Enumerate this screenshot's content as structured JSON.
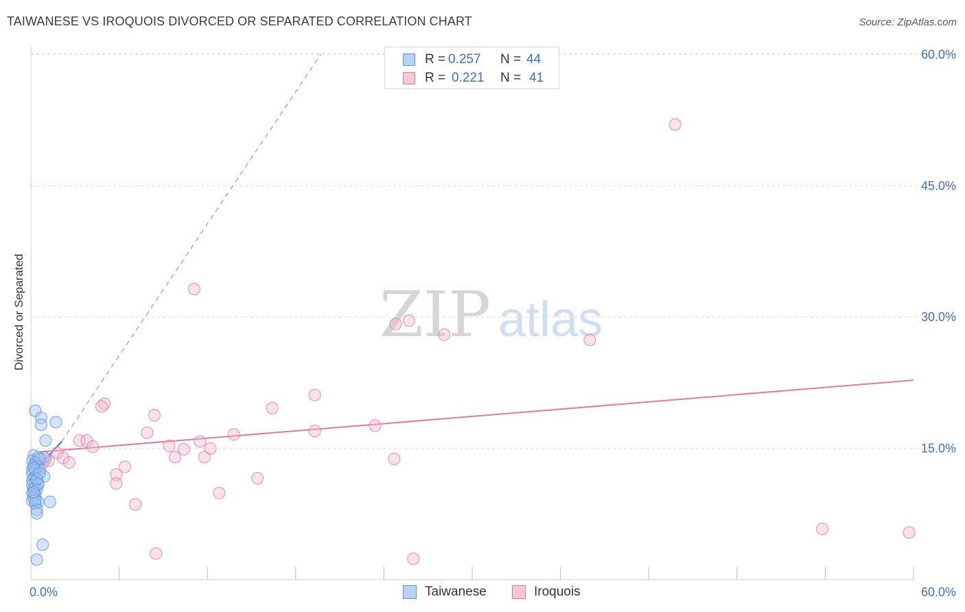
{
  "header": {
    "title": "TAIWANESE VS IROQUOIS DIVORCED OR SEPARATED CORRELATION CHART",
    "source": "Source: ZipAtlas.com"
  },
  "watermark": {
    "zip": "ZIP",
    "atlas": "atlas"
  },
  "legend": {
    "r_label": "R =",
    "n_label": "N =",
    "items": [
      {
        "name": "Taiwanese",
        "r": "0.257",
        "n": "44",
        "color": "#5b8fd8",
        "fill": "#b8d2f5"
      },
      {
        "name": "Iroquois",
        "r": "0.221",
        "n": "41",
        "color": "#e8779b",
        "fill": "#f9c6d6"
      }
    ]
  },
  "chart_data": {
    "type": "scatter",
    "title": "TAIWANESE VS IROQUOIS DIVORCED OR SEPARATED CORRELATION CHART",
    "xlabel": "",
    "ylabel": "Divorced or Separated",
    "xlim": [
      0,
      60
    ],
    "ylim": [
      0,
      62
    ],
    "x_tick_labels": [
      "0.0%",
      "60.0%"
    ],
    "y_ticks": [
      15,
      30,
      45,
      60
    ],
    "y_tick_labels": [
      "15.0%",
      "30.0%",
      "45.0%",
      "60.0%"
    ],
    "grid": true,
    "series": [
      {
        "name": "Taiwanese",
        "color": "#5b8fd8",
        "points": [
          [
            0.3,
            19.3
          ],
          [
            0.7,
            18.5
          ],
          [
            1.7,
            18.0
          ],
          [
            0.7,
            17.7
          ],
          [
            1.0,
            15.9
          ],
          [
            0.2,
            14.2
          ],
          [
            0.5,
            14.0
          ],
          [
            0.9,
            14.0
          ],
          [
            0.1,
            13.6
          ],
          [
            0.3,
            13.4
          ],
          [
            0.2,
            13.1
          ],
          [
            0.4,
            12.9
          ],
          [
            0.1,
            12.6
          ],
          [
            0.3,
            12.5
          ],
          [
            0.6,
            12.6
          ],
          [
            0.1,
            12.1
          ],
          [
            0.4,
            11.9
          ],
          [
            0.9,
            11.8
          ],
          [
            0.2,
            11.6
          ],
          [
            0.1,
            11.3
          ],
          [
            0.3,
            11.2
          ],
          [
            0.5,
            11.0
          ],
          [
            0.1,
            10.8
          ],
          [
            0.3,
            10.6
          ],
          [
            0.2,
            10.4
          ],
          [
            0.4,
            10.3
          ],
          [
            0.1,
            9.9
          ],
          [
            0.3,
            9.7
          ],
          [
            0.2,
            9.4
          ],
          [
            0.1,
            9.0
          ],
          [
            0.5,
            8.9
          ],
          [
            0.3,
            8.7
          ],
          [
            1.3,
            8.9
          ],
          [
            0.4,
            8.0
          ],
          [
            0.4,
            7.6
          ],
          [
            0.8,
            4.0
          ],
          [
            0.4,
            2.3
          ],
          [
            0.6,
            13.8
          ],
          [
            0.2,
            12.8
          ],
          [
            0.5,
            10.9
          ],
          [
            0.3,
            9.1
          ],
          [
            0.4,
            11.5
          ],
          [
            0.6,
            12.2
          ],
          [
            0.2,
            10.0
          ]
        ],
        "trend": {
          "x": [
            0.2,
            2.1
          ],
          "y": [
            12.3,
            15.8
          ],
          "dashed_extension_to": [
            19.7,
            60
          ]
        }
      },
      {
        "name": "Iroquois",
        "color": "#e8779b",
        "points": [
          [
            43.8,
            52.0
          ],
          [
            11.1,
            33.2
          ],
          [
            25.7,
            29.6
          ],
          [
            24.8,
            29.2
          ],
          [
            28.1,
            28.0
          ],
          [
            38.0,
            27.4
          ],
          [
            19.3,
            21.1
          ],
          [
            5.0,
            20.1
          ],
          [
            4.8,
            19.8
          ],
          [
            16.4,
            19.6
          ],
          [
            8.4,
            18.8
          ],
          [
            23.4,
            17.6
          ],
          [
            19.3,
            17.0
          ],
          [
            7.9,
            16.8
          ],
          [
            13.8,
            16.6
          ],
          [
            3.3,
            15.9
          ],
          [
            3.8,
            15.9
          ],
          [
            11.5,
            15.8
          ],
          [
            9.4,
            15.3
          ],
          [
            4.2,
            15.2
          ],
          [
            12.2,
            15.0
          ],
          [
            10.4,
            14.9
          ],
          [
            1.8,
            14.5
          ],
          [
            2.2,
            13.9
          ],
          [
            9.8,
            14.0
          ],
          [
            11.8,
            14.0
          ],
          [
            24.7,
            13.8
          ],
          [
            1.2,
            13.6
          ],
          [
            2.6,
            13.4
          ],
          [
            0.8,
            13.3
          ],
          [
            6.4,
            12.9
          ],
          [
            5.8,
            12.0
          ],
          [
            15.4,
            11.6
          ],
          [
            5.8,
            11.0
          ],
          [
            12.8,
            9.9
          ],
          [
            7.1,
            8.6
          ],
          [
            53.8,
            5.8
          ],
          [
            59.7,
            5.4
          ],
          [
            8.5,
            3.0
          ],
          [
            26.0,
            2.4
          ],
          [
            1.0,
            13.8
          ]
        ],
        "trend": {
          "x": [
            0.6,
            60
          ],
          "y": [
            14.6,
            22.8
          ]
        }
      }
    ]
  }
}
